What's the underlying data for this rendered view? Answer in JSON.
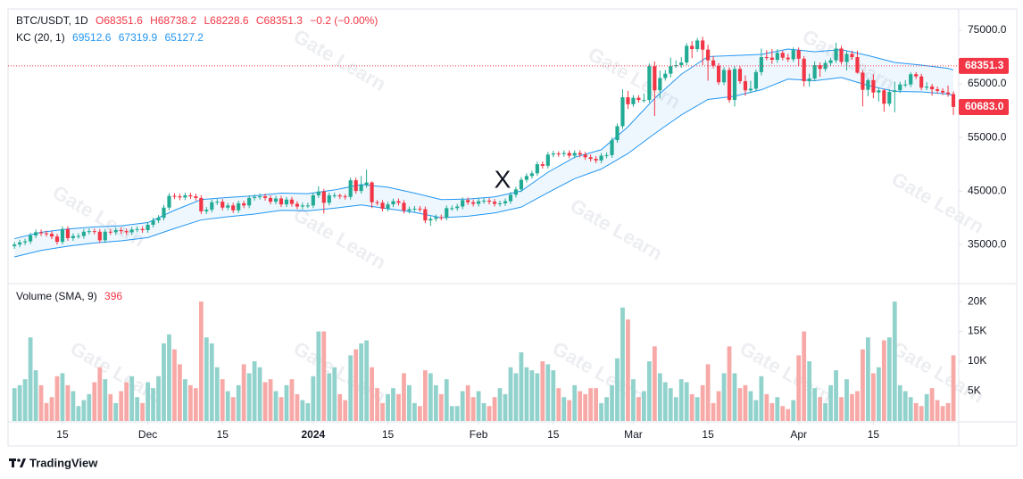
{
  "chart_data": {
    "type": "candlestick",
    "legend": {
      "symbol": "BTC/USDT, 1D",
      "ohlc": [
        "O68351.6",
        "H68738.2",
        "L68228.6",
        "C68351.3",
        "−0.2 (−0.00%)"
      ]
    },
    "up_color": "#22ab94",
    "down_color": "#f23645",
    "xlim": [
      -1.2,
      177
    ],
    "xticks": [
      {
        "value": 9,
        "label": "15"
      },
      {
        "value": 25,
        "label": "Dec"
      },
      {
        "value": 39,
        "label": "15"
      },
      {
        "value": 56,
        "label": "2024"
      },
      {
        "value": 70,
        "label": "15"
      },
      {
        "value": 87,
        "label": "Feb"
      },
      {
        "value": 101,
        "label": "15"
      },
      {
        "value": 116,
        "label": "Mar"
      },
      {
        "value": 130,
        "label": "15"
      },
      {
        "value": 147,
        "label": "Apr"
      },
      {
        "value": 161,
        "label": "15"
      }
    ],
    "ylim": [
      27700,
      79000
    ],
    "yticks": [
      {
        "value": 35000,
        "label": "35000.0"
      },
      {
        "value": 45000,
        "label": "45000.0"
      },
      {
        "value": 55000,
        "label": "55000.0"
      },
      {
        "value": 65000,
        "label": "65000.0"
      },
      {
        "value": 75000,
        "label": "75000.0"
      }
    ],
    "price_markers": [
      {
        "value": 68351.3,
        "label": "68351.3",
        "color": "#f23645"
      },
      {
        "value": 60683,
        "label": "60683.0",
        "color": "#f23645"
      }
    ],
    "open": [
      34700,
      35000,
      35400,
      35600,
      36700,
      37300,
      37100,
      37000,
      36500,
      35500,
      37900,
      36200,
      36600,
      36600,
      37400,
      37500,
      37400,
      35800,
      37400,
      37300,
      37700,
      37500,
      37300,
      37800,
      37900,
      37700,
      38700,
      39500,
      40000,
      41900,
      44100,
      44000,
      43800,
      44200,
      44000,
      43700,
      41200,
      41500,
      42900,
      43000,
      41900,
      42300,
      41400,
      42700,
      42300,
      43700,
      43900,
      44000,
      43700,
      43000,
      43600,
      42500,
      43400,
      42600,
      42100,
      42300,
      42300,
      44200,
      44900,
      42800,
      44200,
      44200,
      44000,
      43900,
      47000,
      45000,
      46100,
      46600,
      42900,
      42800,
      41700,
      42500,
      43100,
      42800,
      41300,
      41600,
      41700,
      41600,
      39500,
      39800,
      40100,
      40000,
      41800,
      41800,
      42100,
      43300,
      42900,
      42600,
      43100,
      43200,
      43000,
      42600,
      42700,
      43100,
      44300,
      45300,
      47100,
      47800,
      48300,
      50000,
      49700,
      51800,
      52000,
      51900,
      52100,
      51600,
      52100,
      51800,
      51300,
      51000,
      50700,
      51600,
      51700,
      54500,
      57100,
      62500,
      61200,
      62400,
      62000,
      62000,
      68300,
      63800,
      66100,
      66900,
      68300,
      68500,
      69000,
      72100,
      71500,
      73100,
      71400,
      69400,
      68400,
      65300,
      67600,
      62000,
      67800,
      65500,
      63800,
      64100,
      67200,
      70000,
      69900,
      69500,
      70800,
      69900,
      69600,
      71300,
      69700,
      65500,
      66000,
      68500,
      67800,
      68900,
      69400,
      71600,
      69100,
      70600,
      70000,
      67100,
      63900,
      65700,
      63400,
      63800,
      61300,
      63500,
      63800,
      64900,
      64900,
      66800,
      66400,
      64300,
      64500,
      64000,
      63700,
      63400,
      63100
    ],
    "high": [
      35500,
      35900,
      36100,
      37200,
      37800,
      37800,
      37600,
      37500,
      37000,
      38400,
      38400,
      37100,
      37100,
      37900,
      38000,
      38000,
      37900,
      37900,
      37900,
      38200,
      38200,
      38000,
      38300,
      38400,
      38400,
      39200,
      40000,
      40500,
      42400,
      44600,
      44600,
      44500,
      44700,
      44700,
      44500,
      44200,
      42000,
      43400,
      43500,
      43500,
      42800,
      42800,
      43200,
      43200,
      44200,
      44400,
      44500,
      44500,
      44200,
      44100,
      44100,
      43900,
      43900,
      43100,
      42800,
      42800,
      44700,
      45900,
      45400,
      44700,
      44700,
      44500,
      44400,
      47500,
      47500,
      47800,
      49000,
      46800,
      43300,
      43300,
      43000,
      43600,
      43600,
      43300,
      42100,
      42200,
      42200,
      42100,
      40300,
      40600,
      40600,
      42300,
      42300,
      42600,
      43800,
      43800,
      43400,
      43600,
      43700,
      43700,
      43500,
      43200,
      43600,
      44800,
      45800,
      47600,
      48300,
      48800,
      50500,
      50500,
      52300,
      52500,
      52400,
      52600,
      52600,
      52600,
      52600,
      52300,
      51800,
      51500,
      52100,
      52200,
      55000,
      57600,
      64000,
      63700,
      62900,
      62900,
      63200,
      68800,
      69200,
      67500,
      67600,
      69900,
      69400,
      70000,
      72600,
      73000,
      73600,
      73800,
      72300,
      70200,
      68900,
      68100,
      68100,
      68300,
      68300,
      66600,
      65600,
      67700,
      71600,
      71300,
      71500,
      71500,
      71200,
      70600,
      71800,
      71800,
      70200,
      66900,
      69200,
      69000,
      69400,
      69900,
      72700,
      72100,
      71100,
      71200,
      71200,
      67600,
      66000,
      66800,
      64300,
      64100,
      64000,
      65400,
      65400,
      65700,
      67200,
      67200,
      66900,
      65300,
      65000,
      64500,
      64200,
      64700,
      63600
    ],
    "low": [
      34200,
      34500,
      34900,
      35100,
      36200,
      36600,
      36500,
      36000,
      35000,
      35000,
      35700,
      35700,
      36100,
      36100,
      36900,
      36900,
      35300,
      35300,
      36800,
      36800,
      37000,
      36800,
      36800,
      37300,
      37200,
      37200,
      38200,
      39000,
      39500,
      41400,
      43500,
      43300,
      43300,
      43500,
      43200,
      40700,
      40700,
      41000,
      42400,
      41400,
      41400,
      40900,
      40900,
      41800,
      41800,
      43200,
      43400,
      43200,
      42500,
      42500,
      42000,
      42000,
      42100,
      41600,
      41600,
      41800,
      41800,
      43700,
      40800,
      42300,
      43700,
      43500,
      43400,
      43400,
      44500,
      44500,
      45600,
      41800,
      42300,
      41200,
      41200,
      42000,
      42300,
      40800,
      40800,
      41100,
      41100,
      39000,
      38500,
      39300,
      39500,
      39500,
      41300,
      41300,
      41600,
      42400,
      42100,
      42100,
      42600,
      42500,
      42100,
      42100,
      42200,
      42600,
      43800,
      44800,
      46600,
      47300,
      47800,
      49200,
      49200,
      51300,
      51400,
      51400,
      51100,
      51100,
      51300,
      50800,
      50500,
      50200,
      50200,
      51100,
      51200,
      54000,
      56600,
      60300,
      60700,
      61500,
      61500,
      61500,
      59000,
      62300,
      65600,
      66200,
      68000,
      68000,
      68500,
      69800,
      71000,
      68500,
      65600,
      67900,
      64800,
      64800,
      61500,
      60800,
      65000,
      62800,
      63300,
      63600,
      66600,
      69400,
      68700,
      68900,
      69400,
      69100,
      69100,
      68300,
      64500,
      64500,
      65500,
      66300,
      67300,
      68400,
      68900,
      68600,
      67500,
      69500,
      66900,
      60800,
      62700,
      62300,
      61700,
      59800,
      60800,
      59700,
      63300,
      64400,
      64400,
      65900,
      63800,
      63800,
      62800,
      63200,
      62900,
      62600,
      59200
    ],
    "close": [
      35000,
      35400,
      35600,
      36700,
      37300,
      37100,
      37000,
      36500,
      35500,
      37900,
      36200,
      36600,
      36600,
      37400,
      37500,
      37400,
      35800,
      37400,
      37300,
      37700,
      37500,
      37300,
      37800,
      37900,
      37700,
      38700,
      39500,
      40000,
      41900,
      44100,
      44000,
      43800,
      44200,
      44000,
      43700,
      41200,
      41500,
      42900,
      43000,
      41900,
      42300,
      41400,
      42700,
      42300,
      43700,
      43900,
      44000,
      43700,
      43000,
      43600,
      42500,
      43400,
      42600,
      42100,
      42300,
      42300,
      44200,
      44900,
      42800,
      44200,
      44200,
      44000,
      43900,
      47000,
      45000,
      46100,
      46600,
      42900,
      42800,
      41700,
      42500,
      43100,
      42800,
      41300,
      41600,
      41700,
      41600,
      39500,
      39800,
      40100,
      40000,
      41800,
      41800,
      42100,
      43300,
      42900,
      42600,
      43100,
      43200,
      43000,
      42600,
      42700,
      43100,
      44300,
      45300,
      47100,
      47800,
      48300,
      50000,
      49700,
      51800,
      52000,
      51900,
      52100,
      51600,
      52100,
      51800,
      51300,
      51000,
      50700,
      51600,
      51700,
      54500,
      57100,
      62500,
      61200,
      62400,
      62000,
      62000,
      68300,
      63800,
      66100,
      66900,
      68300,
      68500,
      69000,
      72100,
      71500,
      73100,
      71400,
      69400,
      68400,
      65300,
      67600,
      62000,
      67800,
      65500,
      63800,
      64100,
      67200,
      70000,
      69900,
      69500,
      70800,
      69900,
      69600,
      71300,
      69700,
      65500,
      66000,
      68500,
      67800,
      68900,
      69400,
      71600,
      69100,
      70600,
      70000,
      67100,
      63900,
      65700,
      63400,
      63800,
      61300,
      63500,
      63800,
      64900,
      64900,
      66800,
      66400,
      64300,
      64500,
      64000,
      63700,
      63400,
      63100,
      60700
    ],
    "indicator": {
      "label": "KC (20, 1)",
      "values_text": [
        "69512.6",
        "67319.9",
        "65127.2"
      ],
      "color": "#2196f3",
      "x": [
        0,
        5,
        10,
        15,
        20,
        25,
        30,
        35,
        40,
        45,
        50,
        55,
        60,
        65,
        70,
        75,
        80,
        85,
        90,
        95,
        100,
        105,
        110,
        115,
        120,
        125,
        130,
        135,
        140,
        145,
        150,
        155,
        160,
        165,
        170,
        175,
        176
      ],
      "upper": [
        36100,
        37300,
        37900,
        38300,
        38500,
        39100,
        41400,
        43400,
        43800,
        44100,
        44600,
        44500,
        45200,
        46200,
        45700,
        44600,
        43400,
        43500,
        43900,
        45000,
        48500,
        51300,
        52700,
        57000,
        62300,
        66800,
        70100,
        70300,
        70500,
        71500,
        71000,
        71400,
        70300,
        69000,
        68500,
        67900,
        67600
      ],
      "lower": [
        32700,
        33900,
        34700,
        35300,
        35700,
        36300,
        38000,
        39600,
        40200,
        40700,
        41400,
        41300,
        41800,
        42400,
        41700,
        41000,
        40000,
        40300,
        40900,
        42000,
        44700,
        47300,
        49100,
        52000,
        55700,
        59200,
        62100,
        62700,
        63900,
        65900,
        65600,
        66200,
        64700,
        63600,
        63500,
        63100,
        62800
      ]
    },
    "volume": {
      "label": "Volume (SMA, 9)",
      "value_text": "396",
      "up_color": "#92d2cc",
      "down_color": "#f7a9a7",
      "ylim": [
        0,
        23000
      ],
      "yticks": [
        {
          "value": 5000,
          "label": "5K"
        },
        {
          "value": 10000,
          "label": "10K"
        },
        {
          "value": 15000,
          "label": "15K"
        },
        {
          "value": 20000,
          "label": "20K"
        }
      ],
      "values": [
        5500,
        6000,
        7000,
        14000,
        8500,
        6000,
        3000,
        4000,
        7500,
        8000,
        6000,
        5000,
        2500,
        3500,
        4500,
        6500,
        9000,
        7000,
        4500,
        3000,
        5000,
        6500,
        7500,
        4000,
        3000,
        6500,
        5500,
        7500,
        13000,
        14500,
        12000,
        9500,
        7000,
        6000,
        5500,
        20000,
        14000,
        13000,
        9000,
        7000,
        5000,
        4000,
        6000,
        9500,
        8000,
        10000,
        9000,
        6500,
        7000,
        5000,
        4000,
        6000,
        7000,
        4500,
        3500,
        3000,
        7500,
        15000,
        15000,
        8000,
        9000,
        4500,
        3500,
        11000,
        12000,
        13000,
        13500,
        9000,
        5500,
        3000,
        4500,
        5500,
        4500,
        8000,
        6000,
        3000,
        2500,
        8500,
        8000,
        6000,
        4500,
        7000,
        2500,
        2500,
        5000,
        6000,
        4000,
        5000,
        3000,
        2500,
        4000,
        5500,
        4500,
        9000,
        8000,
        11500,
        9000,
        8500,
        8000,
        10000,
        9500,
        8500,
        5500,
        4000,
        3500,
        6000,
        5000,
        4500,
        5500,
        5500,
        3000,
        4000,
        6000,
        10500,
        19000,
        17000,
        7000,
        4000,
        5000,
        10000,
        12500,
        8000,
        6500,
        5500,
        4000,
        7000,
        6500,
        4500,
        4000,
        6000,
        9500,
        3000,
        5000,
        8000,
        12500,
        8000,
        5500,
        6000,
        5000,
        3500,
        7500,
        4500,
        3000,
        4000,
        2500,
        2000,
        3500,
        11000,
        15000,
        10000,
        5500,
        4000,
        3000,
        6000,
        8500,
        4000,
        7000,
        4500,
        5000,
        12000,
        14000,
        8000,
        9000,
        13500,
        14000,
        20000,
        6000,
        5000,
        4000,
        3000,
        2500,
        4500,
        5500,
        3500,
        2500,
        3000,
        11000
      ]
    },
    "annotation": "X",
    "watermark": "Gate Learn",
    "footer": "TradingView"
  }
}
